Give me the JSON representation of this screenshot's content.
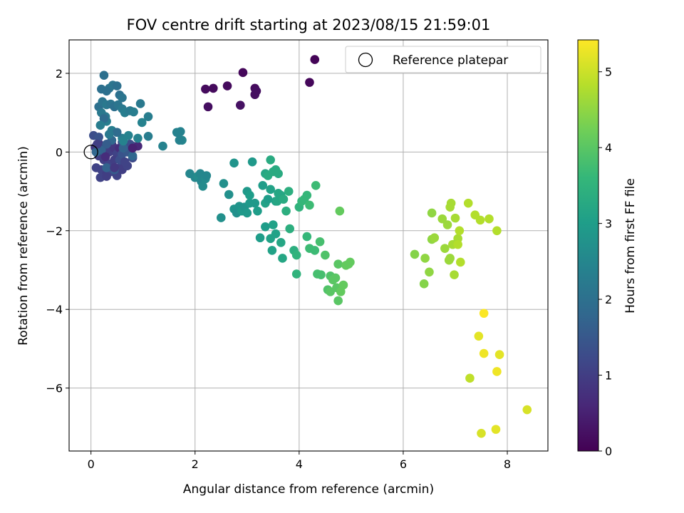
{
  "chart_data": {
    "type": "scatter",
    "title": "FOV centre drift starting at 2023/08/15 21:59:01",
    "xlabel": "Angular distance from reference (arcmin)",
    "ylabel": "Rotation from reference (arcmin)",
    "xlim": [
      -0.42,
      8.78
    ],
    "ylim": [
      -7.6,
      2.85
    ],
    "xticks": [
      0,
      2,
      4,
      6,
      8
    ],
    "xtick_labels": [
      "0",
      "2",
      "4",
      "6",
      "8"
    ],
    "yticks": [
      2,
      0,
      -2,
      -4,
      -6
    ],
    "ytick_labels": [
      "2",
      "0",
      "−2",
      "−4",
      "−6"
    ],
    "grid": true,
    "legend": {
      "placement": "top-right",
      "entries": [
        "Reference platepar"
      ]
    },
    "reference_point": {
      "x": 0,
      "y": 0
    },
    "colorbar": {
      "label": "Hours from first FF file",
      "range": [
        0,
        5.42
      ],
      "ticks": [
        0,
        1,
        2,
        3,
        4,
        5
      ],
      "tick_labels": [
        "0",
        "1",
        "2",
        "3",
        "4",
        "5"
      ],
      "colormap": "viridis"
    },
    "colormap_stops": [
      "#440154",
      "#482878",
      "#3e4989",
      "#31688e",
      "#26828e",
      "#1f9e89",
      "#35b779",
      "#6ece58",
      "#b5de2b",
      "#fde725"
    ],
    "series": [
      {
        "points": [
          [
            4.3,
            2.35,
            0.05
          ],
          [
            4.2,
            1.77,
            0.1
          ],
          [
            2.92,
            2.02,
            0.1
          ],
          [
            2.2,
            1.6,
            0.15
          ],
          [
            2.35,
            1.62,
            0.15
          ],
          [
            2.62,
            1.68,
            0.15
          ],
          [
            3.15,
            1.62,
            0.15
          ],
          [
            3.18,
            1.55,
            0.2
          ],
          [
            3.15,
            1.46,
            0.2
          ],
          [
            2.25,
            1.15,
            0.2
          ],
          [
            2.87,
            1.19,
            0.25
          ],
          [
            0.08,
            0.12,
            0.9
          ],
          [
            0.15,
            0.22,
            0.9
          ],
          [
            0.2,
            0.05,
            0.8
          ],
          [
            0.25,
            0.15,
            0.9
          ],
          [
            0.3,
            0.1,
            1.0
          ],
          [
            0.35,
            0.0,
            1.0
          ],
          [
            0.4,
            0.2,
            0.8
          ],
          [
            0.45,
            0.1,
            0.9
          ],
          [
            0.5,
            -0.05,
            1.1
          ],
          [
            0.55,
            0.1,
            0.7
          ],
          [
            0.6,
            0.25,
            1.2
          ],
          [
            0.7,
            0.12,
            0.7
          ],
          [
            0.8,
            0.15,
            0.8
          ],
          [
            0.9,
            0.15,
            0.6
          ],
          [
            0.15,
            -0.1,
            1.0
          ],
          [
            0.25,
            -0.2,
            1.0
          ],
          [
            0.35,
            -0.3,
            1.1
          ],
          [
            0.45,
            -0.2,
            1.0
          ],
          [
            0.55,
            -0.4,
            1.0
          ],
          [
            0.2,
            -0.45,
            1.1
          ],
          [
            0.3,
            -0.55,
            1.0
          ],
          [
            0.4,
            -0.5,
            1.2
          ],
          [
            0.5,
            -0.6,
            1.1
          ],
          [
            0.6,
            -0.45,
            1.0
          ],
          [
            0.7,
            -0.35,
            1.1
          ],
          [
            0.8,
            -0.15,
            1.2
          ],
          [
            0.1,
            -0.4,
            1.1
          ],
          [
            0.18,
            -0.65,
            1.1
          ],
          [
            0.3,
            -0.62,
            1.0
          ],
          [
            0.55,
            -0.2,
            1.3
          ],
          [
            0.05,
            0.42,
            1.3
          ],
          [
            0.15,
            0.38,
            1.4
          ],
          [
            0.6,
            -0.05,
            1.4
          ],
          [
            0.7,
            0.0,
            1.5
          ],
          [
            0.75,
            0.2,
            1.3
          ],
          [
            0.25,
            1.95,
            2.0
          ],
          [
            0.2,
            1.6,
            2.0
          ],
          [
            0.35,
            1.62,
            2.1
          ],
          [
            0.42,
            1.7,
            2.1
          ],
          [
            0.5,
            1.68,
            2.0
          ],
          [
            0.3,
            1.55,
            2.0
          ],
          [
            0.55,
            1.45,
            2.0
          ],
          [
            0.6,
            1.38,
            2.1
          ],
          [
            0.15,
            1.15,
            2.0
          ],
          [
            0.22,
            1.28,
            2.1
          ],
          [
            0.3,
            1.2,
            2.2
          ],
          [
            0.38,
            1.22,
            2.1
          ],
          [
            0.45,
            1.15,
            2.0
          ],
          [
            0.52,
            1.2,
            2.1
          ],
          [
            0.6,
            1.1,
            2.2
          ],
          [
            0.65,
            1.0,
            2.3
          ],
          [
            0.75,
            1.05,
            2.2
          ],
          [
            0.82,
            1.02,
            2.3
          ],
          [
            0.95,
            1.23,
            2.2
          ],
          [
            1.1,
            0.9,
            2.3
          ],
          [
            0.98,
            0.75,
            2.4
          ],
          [
            0.2,
            1.0,
            2.2
          ],
          [
            0.28,
            0.9,
            2.2
          ],
          [
            0.3,
            0.78,
            2.3
          ],
          [
            0.4,
            0.55,
            2.3
          ],
          [
            0.5,
            0.5,
            2.4
          ],
          [
            0.6,
            0.35,
            2.3
          ],
          [
            0.72,
            0.42,
            2.4
          ],
          [
            0.9,
            0.35,
            2.4
          ],
          [
            1.1,
            0.4,
            2.3
          ],
          [
            0.25,
            0.85,
            1.9
          ],
          [
            0.5,
            0.5,
            1.9
          ],
          [
            1.38,
            0.15,
            2.4
          ],
          [
            1.65,
            0.5,
            2.4
          ],
          [
            1.72,
            0.52,
            2.4
          ],
          [
            1.75,
            0.3,
            2.5
          ],
          [
            1.7,
            0.3,
            2.4
          ],
          [
            0.3,
            -0.4,
            1.7
          ],
          [
            0.45,
            -0.45,
            1.6
          ],
          [
            0.2,
            0.05,
            1.7
          ],
          [
            0.4,
            0.3,
            1.8
          ],
          [
            0.62,
            0.1,
            1.7
          ],
          [
            0.8,
            -0.1,
            1.8
          ],
          [
            0.1,
            0.0,
            1.8
          ],
          [
            0.3,
            0.2,
            1.6
          ],
          [
            1.9,
            -0.55,
            2.5
          ],
          [
            2.0,
            -0.65,
            2.5
          ],
          [
            2.05,
            -0.62,
            2.6
          ],
          [
            2.1,
            -0.55,
            2.5
          ],
          [
            2.12,
            -0.75,
            2.5
          ],
          [
            2.15,
            -0.87,
            2.6
          ],
          [
            2.2,
            -0.68,
            2.6
          ],
          [
            2.22,
            -0.6,
            2.5
          ],
          [
            2.5,
            -1.67,
            2.7
          ],
          [
            2.55,
            -0.8,
            2.7
          ],
          [
            2.65,
            -1.08,
            2.7
          ],
          [
            2.75,
            -0.28,
            2.8
          ],
          [
            2.75,
            -1.45,
            2.8
          ],
          [
            2.8,
            -1.55,
            2.7
          ],
          [
            2.85,
            -1.38,
            2.8
          ],
          [
            2.9,
            -1.5,
            2.9
          ],
          [
            2.95,
            -1.4,
            2.8
          ],
          [
            3.0,
            -1.55,
            2.9
          ],
          [
            3.05,
            -1.3,
            2.9
          ],
          [
            3.0,
            -1.0,
            2.9
          ],
          [
            3.05,
            -1.1,
            3.0
          ],
          [
            3.1,
            -0.25,
            2.9
          ],
          [
            3.15,
            -1.3,
            2.9
          ],
          [
            3.2,
            -1.5,
            3.0
          ],
          [
            3.25,
            -2.18,
            3.0
          ],
          [
            3.3,
            -0.85,
            3.0
          ],
          [
            3.35,
            -1.3,
            3.1
          ],
          [
            3.35,
            -1.9,
            3.0
          ],
          [
            3.4,
            -1.2,
            3.0
          ],
          [
            3.45,
            -0.95,
            3.1
          ],
          [
            3.45,
            -2.2,
            3.1
          ],
          [
            3.48,
            -2.5,
            3.1
          ],
          [
            3.5,
            -1.85,
            3.1
          ],
          [
            3.55,
            -1.25,
            3.1
          ],
          [
            3.55,
            -2.08,
            3.1
          ],
          [
            3.58,
            -1.25,
            3.2
          ],
          [
            3.6,
            -1.05,
            3.2
          ],
          [
            3.65,
            -1.1,
            3.2
          ],
          [
            3.65,
            -2.3,
            3.2
          ],
          [
            3.68,
            -2.7,
            3.2
          ],
          [
            3.35,
            -0.55,
            3.2
          ],
          [
            3.4,
            -0.6,
            3.3
          ],
          [
            3.45,
            -0.2,
            3.3
          ],
          [
            3.5,
            -0.5,
            3.3
          ],
          [
            3.55,
            -0.45,
            3.3
          ],
          [
            3.6,
            -0.55,
            3.3
          ],
          [
            3.7,
            -1.2,
            3.3
          ],
          [
            3.75,
            -1.5,
            3.4
          ],
          [
            3.8,
            -1.0,
            3.4
          ],
          [
            3.82,
            -1.95,
            3.4
          ],
          [
            3.9,
            -2.5,
            3.4
          ],
          [
            3.95,
            -2.62,
            3.5
          ],
          [
            3.95,
            -3.1,
            3.5
          ],
          [
            4.0,
            -1.4,
            3.5
          ],
          [
            4.05,
            -1.25,
            3.6
          ],
          [
            4.1,
            -1.2,
            3.6
          ],
          [
            4.15,
            -1.1,
            3.6
          ],
          [
            4.15,
            -2.15,
            3.6
          ],
          [
            4.2,
            -1.35,
            3.7
          ],
          [
            4.2,
            -2.45,
            3.7
          ],
          [
            4.3,
            -2.5,
            3.7
          ],
          [
            4.32,
            -0.85,
            3.7
          ],
          [
            4.35,
            -3.1,
            3.8
          ],
          [
            4.4,
            -2.28,
            3.8
          ],
          [
            4.42,
            -3.12,
            3.8
          ],
          [
            4.5,
            -2.62,
            3.9
          ],
          [
            4.55,
            -3.5,
            3.9
          ],
          [
            4.6,
            -3.15,
            3.9
          ],
          [
            4.6,
            -3.55,
            4.0
          ],
          [
            4.65,
            -3.25,
            4.0
          ],
          [
            4.7,
            -3.2,
            4.0
          ],
          [
            4.72,
            -3.45,
            4.0
          ],
          [
            4.75,
            -2.85,
            4.0
          ],
          [
            4.75,
            -3.78,
            4.0
          ],
          [
            4.78,
            -1.5,
            4.1
          ],
          [
            4.8,
            -3.55,
            4.1
          ],
          [
            4.85,
            -3.38,
            4.1
          ],
          [
            4.9,
            -2.88,
            4.1
          ],
          [
            4.95,
            -2.85,
            4.1
          ],
          [
            4.98,
            -2.8,
            4.1
          ],
          [
            6.22,
            -2.6,
            4.4
          ],
          [
            6.4,
            -3.35,
            4.4
          ],
          [
            6.42,
            -2.7,
            4.5
          ],
          [
            6.5,
            -3.05,
            4.5
          ],
          [
            6.55,
            -2.22,
            4.5
          ],
          [
            6.55,
            -1.55,
            4.5
          ],
          [
            6.6,
            -2.18,
            4.6
          ],
          [
            6.75,
            -1.7,
            4.6
          ],
          [
            6.8,
            -2.45,
            4.6
          ],
          [
            6.85,
            -1.85,
            4.6
          ],
          [
            6.88,
            -2.75,
            4.6
          ],
          [
            6.9,
            -2.7,
            4.6
          ],
          [
            6.9,
            -1.4,
            4.7
          ],
          [
            6.92,
            -1.3,
            4.7
          ],
          [
            6.95,
            -2.35,
            4.7
          ],
          [
            6.98,
            -3.12,
            4.7
          ],
          [
            7.0,
            -1.68,
            4.7
          ],
          [
            7.05,
            -2.2,
            4.7
          ],
          [
            7.05,
            -2.35,
            4.8
          ],
          [
            7.08,
            -2.0,
            4.8
          ],
          [
            7.1,
            -2.8,
            4.8
          ],
          [
            7.25,
            -1.3,
            4.8
          ],
          [
            7.28,
            -5.75,
            4.9
          ],
          [
            7.38,
            -1.6,
            4.8
          ],
          [
            7.48,
            -1.73,
            4.8
          ],
          [
            7.65,
            -1.7,
            4.8
          ],
          [
            7.8,
            -2.0,
            4.8
          ],
          [
            7.45,
            -4.68,
            5.2
          ],
          [
            7.5,
            -7.15,
            5.1
          ],
          [
            7.55,
            -4.1,
            5.4
          ],
          [
            7.55,
            -5.12,
            5.3
          ],
          [
            7.78,
            -7.05,
            5.2
          ],
          [
            7.8,
            -5.58,
            5.3
          ],
          [
            7.85,
            -5.15,
            5.2
          ],
          [
            8.38,
            -6.55,
            5.1
          ],
          [
            0.12,
            0.2,
            1.0
          ],
          [
            0.35,
            0.45,
            2.2
          ],
          [
            0.62,
            0.28,
            2.4
          ],
          [
            0.18,
            0.68,
            2.3
          ],
          [
            0.65,
            -0.25,
            1.1
          ],
          [
            0.28,
            -0.12,
            0.7
          ],
          [
            0.8,
            0.1,
            0.5
          ],
          [
            0.45,
            -0.4,
            0.9
          ]
        ]
      }
    ]
  }
}
